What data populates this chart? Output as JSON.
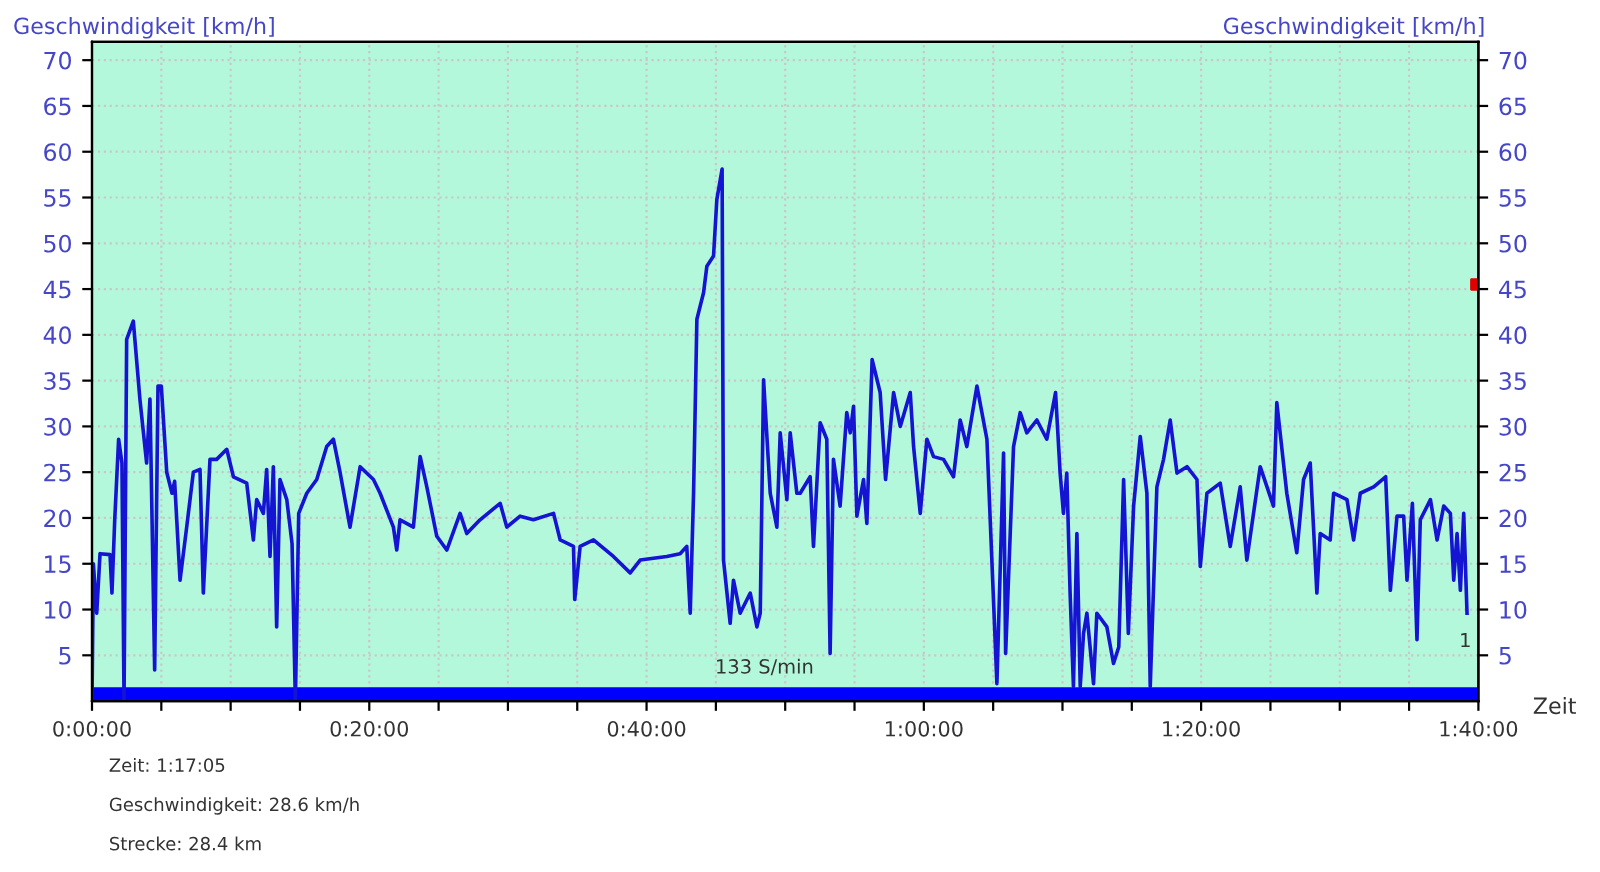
{
  "chart_data": {
    "type": "line",
    "ylabel": "Geschwindigkeit [km/h]",
    "y2label": "Geschwindigkeit [km/h]",
    "xlabel": "Zeit",
    "xlim": [
      0,
      100
    ],
    "ylim": [
      0,
      72
    ],
    "y2lim": [
      0,
      72
    ],
    "xticks": [
      {
        "value": 0,
        "label": "0:00:00"
      },
      {
        "value": 5,
        "label": null
      },
      {
        "value": 10,
        "label": null
      },
      {
        "value": 15,
        "label": null
      },
      {
        "value": 20,
        "label": "0:20:00"
      },
      {
        "value": 25,
        "label": null
      },
      {
        "value": 30,
        "label": null
      },
      {
        "value": 35,
        "label": null
      },
      {
        "value": 40,
        "label": "0:40:00"
      },
      {
        "value": 45,
        "label": null
      },
      {
        "value": 50,
        "label": null
      },
      {
        "value": 55,
        "label": null
      },
      {
        "value": 60,
        "label": "1:00:00"
      },
      {
        "value": 65,
        "label": null
      },
      {
        "value": 70,
        "label": null
      },
      {
        "value": 75,
        "label": null
      },
      {
        "value": 80,
        "label": "1:20:00"
      },
      {
        "value": 85,
        "label": null
      },
      {
        "value": 90,
        "label": null
      },
      {
        "value": 95,
        "label": null
      },
      {
        "value": 100,
        "label": "1:40:00"
      }
    ],
    "yticks": [
      5,
      10,
      15,
      20,
      25,
      30,
      35,
      40,
      45,
      50,
      55,
      60,
      65,
      70
    ],
    "y2ticks": [
      5,
      10,
      15,
      20,
      25,
      30,
      35,
      40,
      45,
      50,
      55,
      60,
      65,
      70
    ],
    "grid": true,
    "legend": false,
    "line_style": "solid",
    "series": [
      {
        "color": "#1414d2",
        "x": [
          0.0,
          0.1,
          0.34,
          0.58,
          1.3,
          1.44,
          1.64,
          1.92,
          2.16,
          2.31,
          2.5,
          2.98,
          3.46,
          3.94,
          4.18,
          4.52,
          4.76,
          5.0,
          5.39,
          5.77,
          5.96,
          6.35,
          6.83,
          7.31,
          7.79,
          8.03,
          8.51,
          8.99,
          9.72,
          10.2,
          11.16,
          11.64,
          11.88,
          12.36,
          12.6,
          12.84,
          13.08,
          13.32,
          13.56,
          14.05,
          14.43,
          14.67,
          14.91,
          15.49,
          16.21,
          16.93,
          17.41,
          17.89,
          18.61,
          19.34,
          20.3,
          20.78,
          21.74,
          21.98,
          22.22,
          23.18,
          23.67,
          24.15,
          24.87,
          25.59,
          26.55,
          27.03,
          27.99,
          29.44,
          29.92,
          30.88,
          31.84,
          33.29,
          33.77,
          34.73,
          34.82,
          35.21,
          36.17,
          37.61,
          38.82,
          39.54,
          41.46,
          42.42,
          42.9,
          43.15,
          43.39,
          43.63,
          44.11,
          44.35,
          44.83,
          45.07,
          45.45,
          45.55,
          46.03,
          46.27,
          46.75,
          47.48,
          47.96,
          48.2,
          48.44,
          48.92,
          49.4,
          49.64,
          50.12,
          50.36,
          50.84,
          51.08,
          51.8,
          52.04,
          52.52,
          53.0,
          53.24,
          53.48,
          53.96,
          54.44,
          54.69,
          54.93,
          55.17,
          55.65,
          55.89,
          56.27,
          56.85,
          57.24,
          57.82,
          58.3,
          59.02,
          59.26,
          59.74,
          60.22,
          60.7,
          61.42,
          62.14,
          62.62,
          63.1,
          63.83,
          64.55,
          65.27,
          65.75,
          65.9,
          66.47,
          66.95,
          67.43,
          68.15,
          68.87,
          69.5,
          69.83,
          70.07,
          70.31,
          70.55,
          70.79,
          71.04,
          71.28,
          71.52,
          71.76,
          72.24,
          72.48,
          73.2,
          73.68,
          74.06,
          74.41,
          74.75,
          75.13,
          75.61,
          76.09,
          76.33,
          76.81,
          77.29,
          77.77,
          78.26,
          78.98,
          79.7,
          79.94,
          80.42,
          81.38,
          82.1,
          82.82,
          83.3,
          84.26,
          85.22,
          85.46,
          86.18,
          86.9,
          87.39,
          87.87,
          88.35,
          88.59,
          89.31,
          89.56,
          90.52,
          91.0,
          91.48,
          92.45,
          93.31,
          93.65,
          94.13,
          94.61,
          94.85,
          95.24,
          95.57,
          95.81,
          96.54,
          97.02,
          97.5,
          97.98,
          98.22,
          98.46,
          98.7,
          98.94,
          99.18
        ],
        "values": [
          0,
          15,
          9.6,
          16.1,
          16,
          11.8,
          19.8,
          28.6,
          26,
          0,
          39.5,
          41.5,
          32.9,
          26,
          33,
          3.4,
          34.4,
          34.4,
          25,
          22.7,
          24,
          13.2,
          19,
          25,
          25.3,
          11.8,
          26.4,
          26.4,
          27.5,
          24.5,
          23.8,
          17.6,
          22,
          20.5,
          25.3,
          15.8,
          25.6,
          8.1,
          24.2,
          22,
          17.2,
          0,
          20.5,
          22.7,
          24.2,
          27.8,
          28.6,
          25,
          19,
          25.6,
          24.2,
          22.7,
          19,
          16.5,
          19.8,
          19,
          26.7,
          23.4,
          18,
          16.5,
          20.5,
          18.3,
          19.8,
          21.6,
          19,
          20.2,
          19.8,
          20.5,
          17.6,
          16.9,
          11.1,
          16.9,
          17.6,
          15.8,
          14,
          15.4,
          15.8,
          16.1,
          16.9,
          9.6,
          22.7,
          41.7,
          44.6,
          47.5,
          48.6,
          54.8,
          58.1,
          15.4,
          8.5,
          13.2,
          9.6,
          11.8,
          8.1,
          9.6,
          35.1,
          22.7,
          19,
          29.3,
          22,
          29.3,
          22.7,
          22.7,
          24.5,
          16.9,
          30.4,
          28.6,
          5.2,
          26.4,
          21.3,
          31.5,
          29.3,
          32.2,
          20.2,
          24.2,
          19.4,
          37.3,
          33.7,
          24.2,
          33.7,
          30,
          33.7,
          27.8,
          20.5,
          28.6,
          26.7,
          26.4,
          24.5,
          30.7,
          27.8,
          34.4,
          28.6,
          1.9,
          27.1,
          5.2,
          27.8,
          31.5,
          29.3,
          30.7,
          28.6,
          33.7,
          24.9,
          20.5,
          24.9,
          11.8,
          1.6,
          18.3,
          1.6,
          7.4,
          9.6,
          1.9,
          9.6,
          8.1,
          4.1,
          5.9,
          24.2,
          7.4,
          21.3,
          28.9,
          22.7,
          1.6,
          23.4,
          26.4,
          30.7,
          24.9,
          25.6,
          24.2,
          14.7,
          22.7,
          23.8,
          16.9,
          23.4,
          15.4,
          25.6,
          21.3,
          32.6,
          22.7,
          16.2,
          24.2,
          26,
          11.8,
          18.3,
          17.6,
          22.7,
          22,
          17.6,
          22.7,
          23.4,
          24.5,
          12.1,
          20.2,
          20.2,
          13.2,
          21.6,
          6.7,
          19.8,
          22,
          17.6,
          21.3,
          20.5,
          13.2,
          18.3,
          12.1,
          20.5,
          9.6
        ]
      },
      {
        "type": "scatter",
        "color": "#e00000",
        "marker": "square",
        "x": [
          99.85
        ],
        "values": [
          45.5
        ]
      }
    ],
    "bands": [
      {
        "axis": "y",
        "from": 0,
        "to": 1.5,
        "color": "#0000ff"
      }
    ],
    "annotations": [
      "133 S/min",
      "1",
      "Zeit: 1:17:05",
      "Geschwindigkeit: 28.6 km/h",
      "Strecke: 28.4 km"
    ]
  }
}
